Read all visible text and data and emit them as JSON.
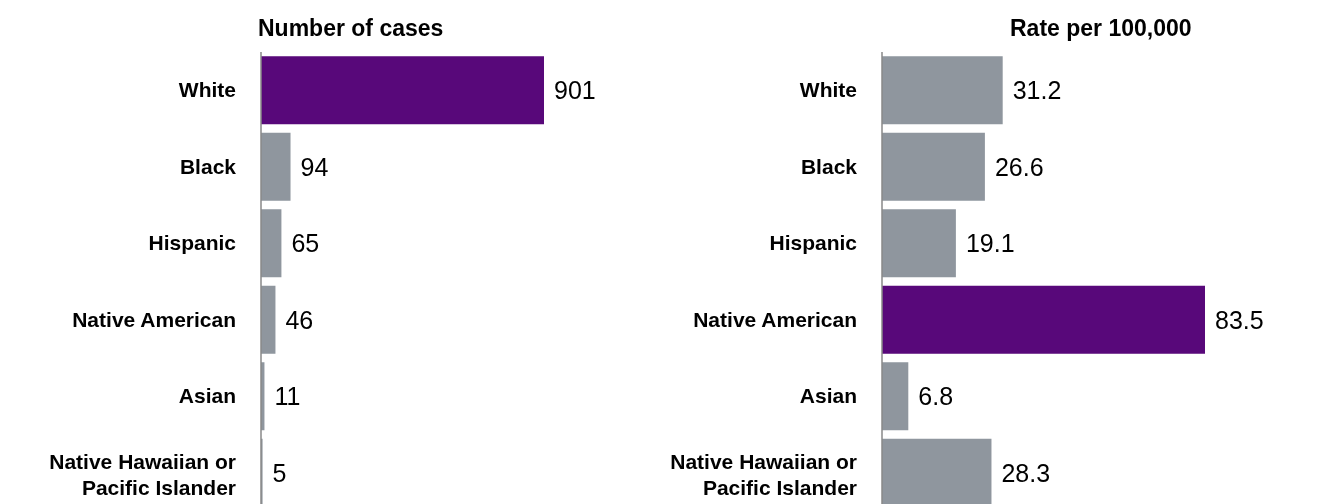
{
  "chart_data": [
    {
      "type": "bar",
      "orientation": "horizontal",
      "title": "Number of cases",
      "categories": [
        "White",
        "Black",
        "Hispanic",
        "Native American",
        "Asian",
        "Native Hawaiian or Pacific Islander"
      ],
      "values": [
        901,
        94,
        65,
        46,
        11,
        5
      ],
      "colors": [
        "#58087a",
        "#8f969e",
        "#8f969e",
        "#8f969e",
        "#8f969e",
        "#8f969e"
      ],
      "data_labels": true
    },
    {
      "type": "bar",
      "orientation": "horizontal",
      "title": "Rate per 100,000",
      "categories": [
        "White",
        "Black",
        "Hispanic",
        "Native American",
        "Asian",
        "Native Hawaiian or Pacific Islander"
      ],
      "values": [
        31.2,
        26.6,
        19.1,
        83.5,
        6.8,
        28.3
      ],
      "colors": [
        "#8f969e",
        "#8f969e",
        "#8f969e",
        "#58087a",
        "#8f969e",
        "#8f969e"
      ],
      "data_labels": true
    }
  ]
}
